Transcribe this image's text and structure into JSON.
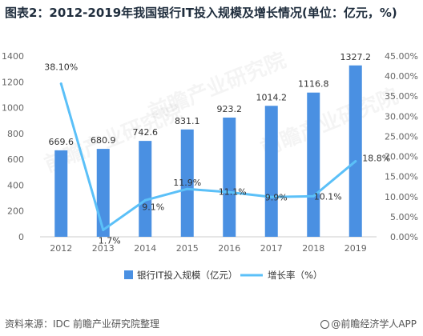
{
  "title": "图表2：2012-2019年我国银行IT投入规模及增长情况(单位：亿元，%)",
  "source": "资料来源：IDC 前瞻产业研究院整理",
  "brand": "@前瞻经济学人APP",
  "watermark": "前瞻产业研究院",
  "colors": {
    "bar": "#4a90e2",
    "line": "#5bc0f8"
  },
  "chart_data": {
    "type": "bar",
    "categories": [
      "2012",
      "2013",
      "2014",
      "2015",
      "2016",
      "2017",
      "2018",
      "2019"
    ],
    "series": [
      {
        "name": "银行IT投入规模（亿元）",
        "type": "bar",
        "axis": "left",
        "values": [
          669.6,
          680.9,
          742.6,
          831.1,
          923.2,
          1014.2,
          1116.8,
          1327.2
        ],
        "labels": [
          "669.6",
          "680.9",
          "742.6",
          "831.1",
          "923.2",
          "1014.2",
          "1116.8",
          "1327.2"
        ]
      },
      {
        "name": "增长率（%）",
        "type": "line",
        "axis": "right",
        "values": [
          38.1,
          1.7,
          9.1,
          11.9,
          11.1,
          9.9,
          10.1,
          18.8
        ],
        "labels": [
          "38.10%",
          "1.7%",
          "9.1%",
          "11.9%",
          "11.1%",
          "9.9%",
          "10.1%",
          "18.8%"
        ]
      }
    ],
    "y_left": {
      "min": 0,
      "max": 1400,
      "ticks": [
        "0",
        "200",
        "400",
        "600",
        "800",
        "1000",
        "1200",
        "1400"
      ]
    },
    "y_right": {
      "min": 0,
      "max": 45,
      "ticks": [
        "0.00%",
        "5.00%",
        "10.00%",
        "15.00%",
        "20.00%",
        "25.00%",
        "30.00%",
        "35.00%",
        "40.00%",
        "45.00%"
      ]
    },
    "grid": false,
    "legend": "bottom"
  }
}
